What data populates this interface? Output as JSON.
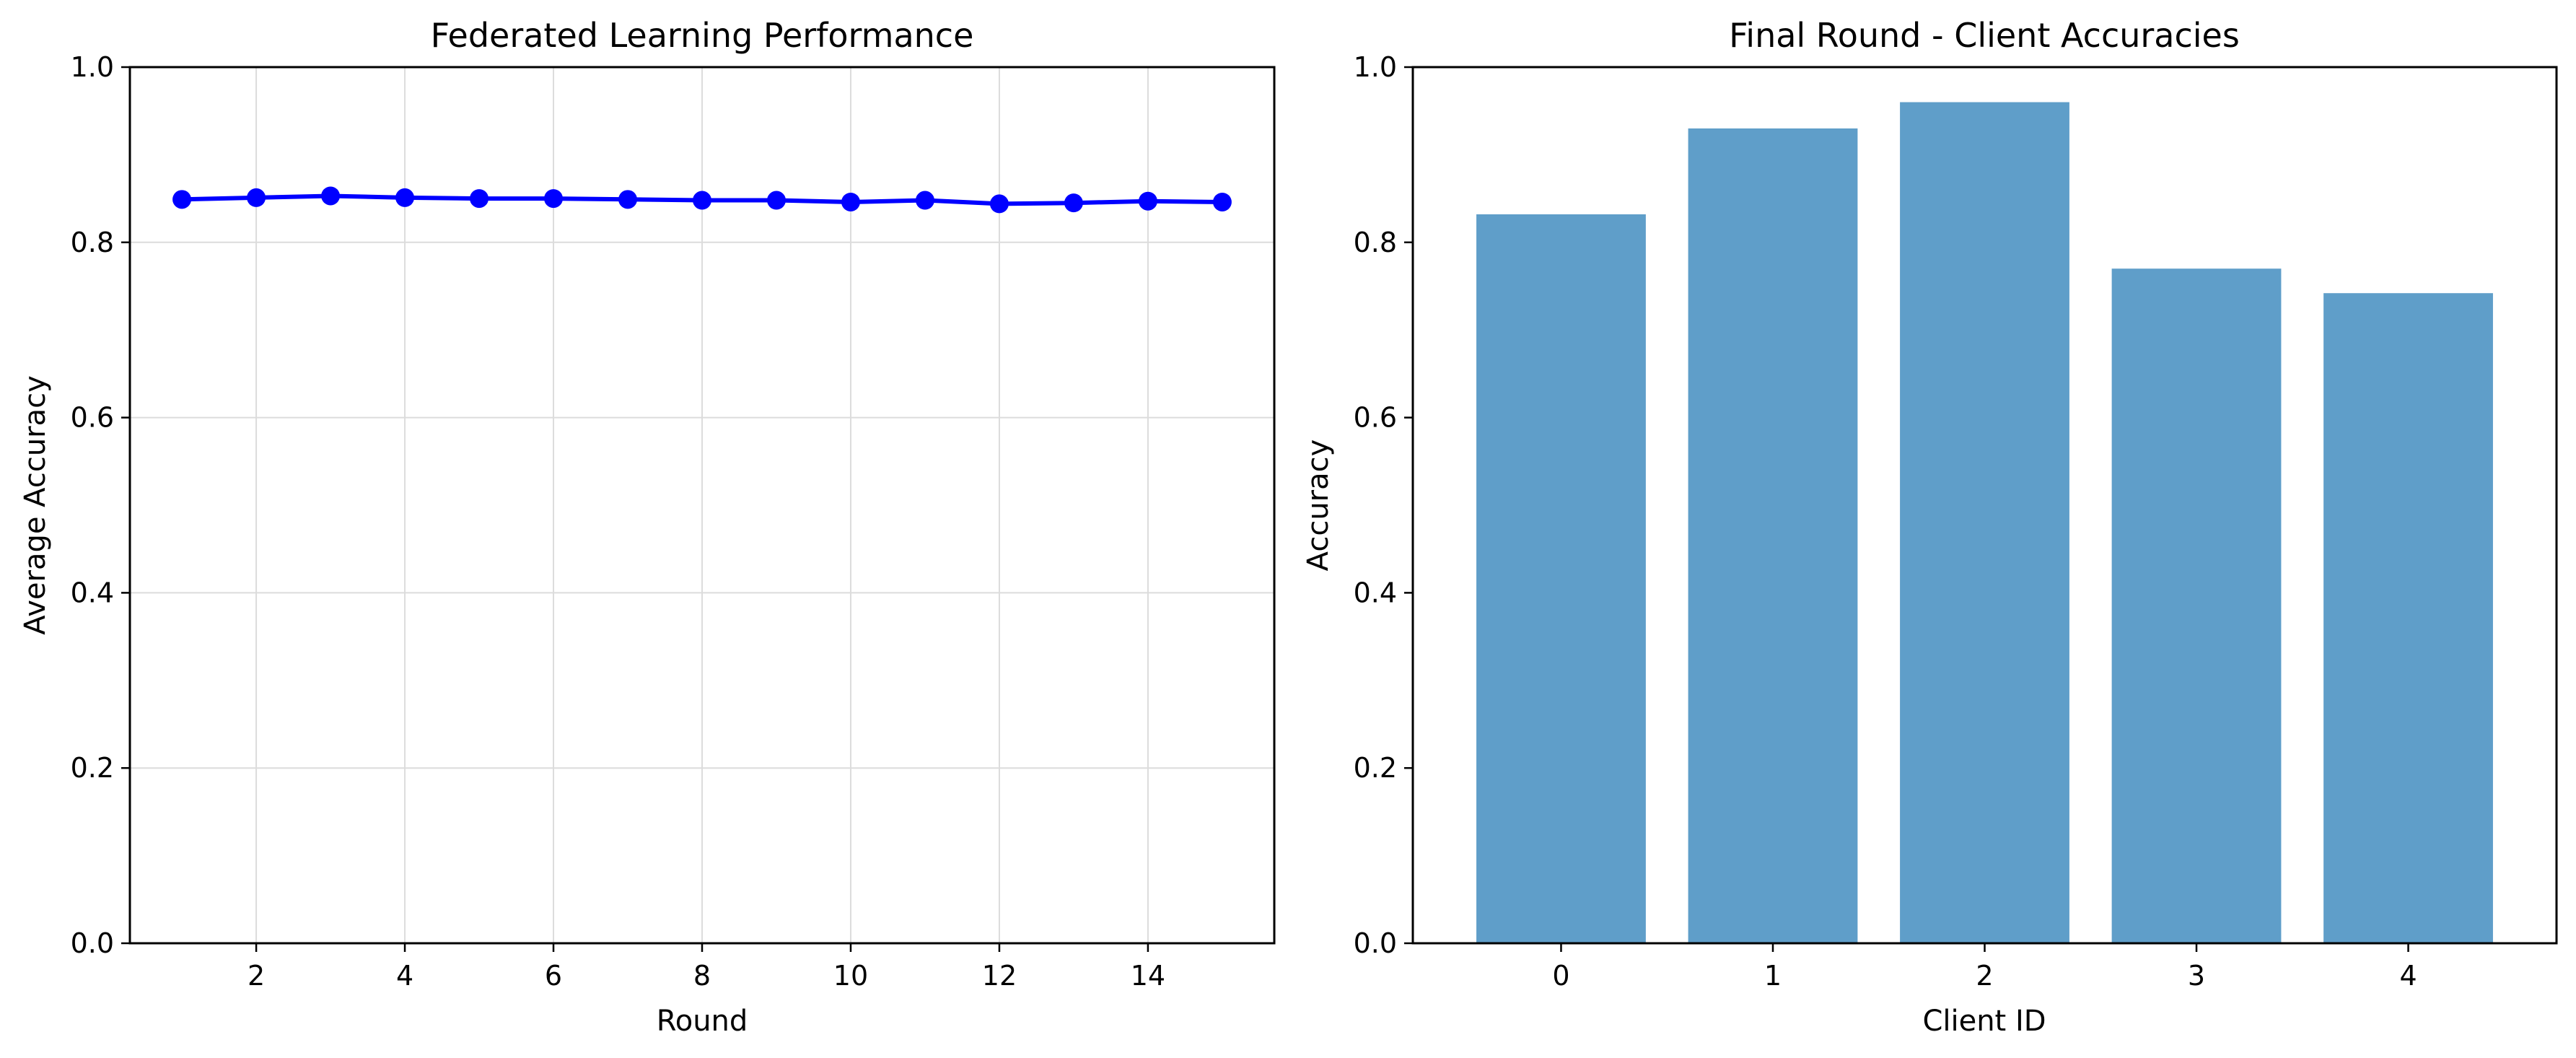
{
  "chart_data": [
    {
      "type": "line",
      "title": "Federated Learning Performance",
      "xlabel": "Round",
      "ylabel": "Average Accuracy",
      "xlim": [
        0.3,
        15.7
      ],
      "ylim": [
        0,
        1
      ],
      "xticks": [
        2,
        4,
        6,
        8,
        10,
        12,
        14
      ],
      "yticks": [
        0.0,
        0.2,
        0.4,
        0.6,
        0.8,
        1.0
      ],
      "grid": true,
      "color": "#0000ff",
      "x": [
        1,
        2,
        3,
        4,
        5,
        6,
        7,
        8,
        9,
        10,
        11,
        12,
        13,
        14,
        15
      ],
      "y": [
        0.849,
        0.851,
        0.853,
        0.851,
        0.85,
        0.85,
        0.849,
        0.848,
        0.848,
        0.846,
        0.848,
        0.844,
        0.845,
        0.847,
        0.846
      ]
    },
    {
      "type": "bar",
      "title": "Final Round - Client Accuracies",
      "xlabel": "Client ID",
      "ylabel": "Accuracy",
      "ylim": [
        0,
        1
      ],
      "yticks": [
        0.0,
        0.2,
        0.4,
        0.6,
        0.8,
        1.0
      ],
      "grid": false,
      "color": "#5f9ec9",
      "categories": [
        "0",
        "1",
        "2",
        "3",
        "4"
      ],
      "values": [
        0.832,
        0.93,
        0.96,
        0.77,
        0.742
      ]
    }
  ]
}
